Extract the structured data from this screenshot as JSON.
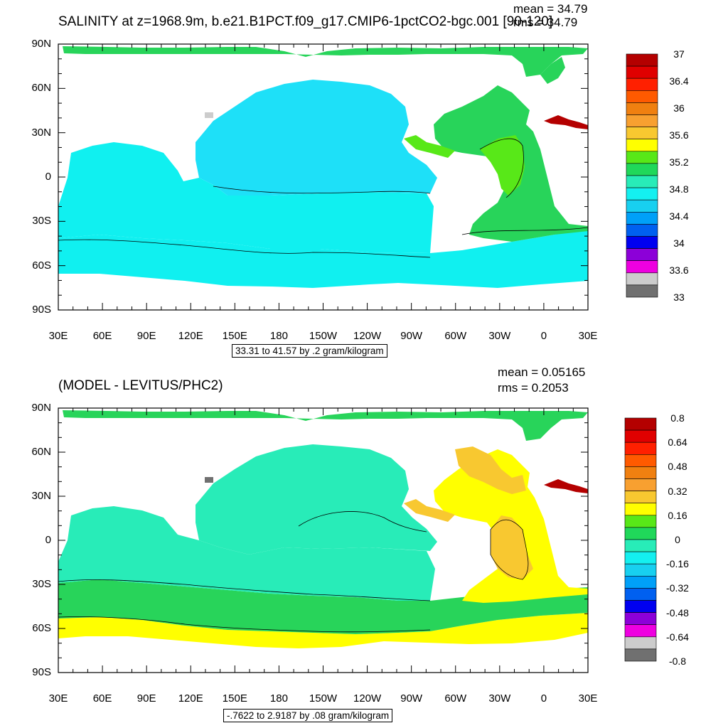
{
  "panels": [
    {
      "title": "SALINITY at z=1968.9m, b.e21.B1PCT.f09_g17.CMIP6-1pctCO2-bgc.001 [90-120]",
      "stats": {
        "mean": "mean = 34.79",
        "rms": "rms = 34.79"
      },
      "range_label": "33.31 to 41.57 by .2 gram/kilogram",
      "colorbar_labels": [
        "37",
        "36.4",
        "36",
        "35.6",
        "35.2",
        "34.8",
        "34.4",
        "34",
        "33.6",
        "33"
      ]
    },
    {
      "title": "(MODEL - LEVITUS/PHC2)",
      "stats": {
        "mean": "mean = 0.05165",
        "rms": "rms = 0.2053"
      },
      "range_label": "-.7622 to 2.9187 by .08 gram/kilogram",
      "colorbar_labels": [
        "0.8",
        "0.64",
        "0.48",
        "0.32",
        "0.16",
        "0",
        "-0.16",
        "-0.32",
        "-0.48",
        "-0.64",
        "-0.8"
      ]
    }
  ],
  "lat_labels": [
    "90N",
    "60N",
    "30N",
    "0",
    "30S",
    "60S",
    "90S"
  ],
  "lon_labels": [
    "30E",
    "60E",
    "90E",
    "120E",
    "150E",
    "180",
    "150W",
    "120W",
    "90W",
    "60W",
    "30W",
    "0",
    "30E"
  ],
  "colors": {
    "top_colorbar": [
      "#b40000",
      "#e00000",
      "#ff2000",
      "#ff5a00",
      "#f08010",
      "#f8a030",
      "#f8c830",
      "#ffff00",
      "#58e818",
      "#20d85a",
      "#28ecb8",
      "#14f0f0",
      "#18d0f0",
      "#00a0f8",
      "#0060f0",
      "#0000f0",
      "#8c00d8",
      "#ee00e0",
      "#cccccc",
      "#707070"
    ],
    "bottom_colorbar": [
      "#b40000",
      "#e00000",
      "#ff2000",
      "#ff5a00",
      "#f08010",
      "#f8a030",
      "#f8c830",
      "#ffff00",
      "#58e818",
      "#20d85a",
      "#28ecb8",
      "#14f0f0",
      "#18d0f0",
      "#00a0f8",
      "#0060f0",
      "#0000f0",
      "#8c00d8",
      "#ee00e0",
      "#cccccc",
      "#707070"
    ],
    "top_pacific": "#1ee0f8",
    "top_southern": "#10f0f0",
    "top_atlantic": "#28d45a",
    "top_atlantic_core": "#58e818",
    "top_arctic": "#28d45a",
    "bottom_pacific": "#28ecb8",
    "bottom_southern": "#28d45a",
    "bottom_atlantic": "#ffff00",
    "bottom_atlantic_core": "#f8c830",
    "bottom_arctic": "#28d45a",
    "saline_patch": "#b40000"
  }
}
